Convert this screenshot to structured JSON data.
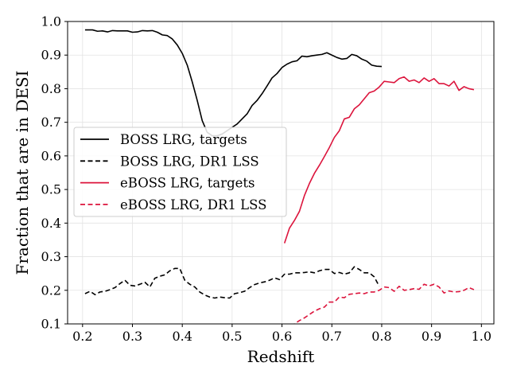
{
  "chart_data": {
    "type": "line",
    "xlabel": "Redshift",
    "ylabel": "Fraction that are in DESI",
    "xlim": [
      0.17,
      1.025
    ],
    "ylim": [
      0.1,
      1.0
    ],
    "xticks": [
      "0.2",
      "0.3",
      "0.4",
      "0.5",
      "0.6",
      "0.7",
      "0.8",
      "0.9",
      "1.0"
    ],
    "yticks": [
      "0.1",
      "0.2",
      "0.3",
      "0.4",
      "0.5",
      "0.6",
      "0.7",
      "0.8",
      "0.9",
      "1.0"
    ],
    "grid": true,
    "legend_position": "center-left",
    "series": [
      {
        "name": "BOSS LRG, targets",
        "color": "#000000",
        "dash": "solid",
        "x": [
          0.205,
          0.22,
          0.23,
          0.24,
          0.25,
          0.26,
          0.27,
          0.28,
          0.29,
          0.3,
          0.31,
          0.32,
          0.33,
          0.34,
          0.35,
          0.36,
          0.37,
          0.38,
          0.39,
          0.4,
          0.41,
          0.42,
          0.43,
          0.44,
          0.45,
          0.46,
          0.47,
          0.48,
          0.49,
          0.5,
          0.51,
          0.52,
          0.53,
          0.54,
          0.55,
          0.56,
          0.57,
          0.58,
          0.59,
          0.6,
          0.61,
          0.62,
          0.63,
          0.64,
          0.65,
          0.66,
          0.67,
          0.68,
          0.69,
          0.7,
          0.71,
          0.72,
          0.73,
          0.74,
          0.75,
          0.76,
          0.77,
          0.78,
          0.79,
          0.8
        ],
        "y": [
          0.975,
          0.975,
          0.971,
          0.972,
          0.969,
          0.973,
          0.972,
          0.972,
          0.972,
          0.968,
          0.969,
          0.973,
          0.972,
          0.973,
          0.968,
          0.96,
          0.958,
          0.948,
          0.93,
          0.905,
          0.87,
          0.82,
          0.765,
          0.705,
          0.67,
          0.66,
          0.66,
          0.665,
          0.675,
          0.685,
          0.695,
          0.71,
          0.725,
          0.75,
          0.765,
          0.785,
          0.808,
          0.832,
          0.845,
          0.863,
          0.873,
          0.88,
          0.883,
          0.897,
          0.895,
          0.898,
          0.9,
          0.902,
          0.907,
          0.9,
          0.893,
          0.888,
          0.89,
          0.902,
          0.898,
          0.888,
          0.882,
          0.87,
          0.867,
          0.866
        ]
      },
      {
        "name": "BOSS LRG, DR1 LSS",
        "color": "#000000",
        "dash": "dashed",
        "x": [
          0.205,
          0.215,
          0.225,
          0.235,
          0.245,
          0.255,
          0.265,
          0.275,
          0.285,
          0.295,
          0.305,
          0.315,
          0.325,
          0.335,
          0.345,
          0.355,
          0.365,
          0.375,
          0.385,
          0.395,
          0.405,
          0.415,
          0.425,
          0.435,
          0.445,
          0.455,
          0.465,
          0.475,
          0.485,
          0.495,
          0.505,
          0.515,
          0.525,
          0.535,
          0.545,
          0.555,
          0.565,
          0.575,
          0.585,
          0.595,
          0.605,
          0.615,
          0.625,
          0.635,
          0.645,
          0.655,
          0.665,
          0.675,
          0.685,
          0.695,
          0.705,
          0.715,
          0.725,
          0.735,
          0.745,
          0.755,
          0.765,
          0.775,
          0.785,
          0.795
        ],
        "y": [
          0.19,
          0.197,
          0.187,
          0.195,
          0.197,
          0.202,
          0.208,
          0.22,
          0.23,
          0.215,
          0.213,
          0.218,
          0.224,
          0.21,
          0.236,
          0.242,
          0.246,
          0.258,
          0.265,
          0.265,
          0.23,
          0.218,
          0.21,
          0.195,
          0.186,
          0.18,
          0.177,
          0.18,
          0.178,
          0.177,
          0.19,
          0.193,
          0.197,
          0.208,
          0.217,
          0.222,
          0.225,
          0.23,
          0.237,
          0.232,
          0.248,
          0.248,
          0.252,
          0.252,
          0.253,
          0.255,
          0.252,
          0.258,
          0.262,
          0.262,
          0.25,
          0.253,
          0.248,
          0.252,
          0.27,
          0.262,
          0.252,
          0.252,
          0.24,
          0.212
        ]
      },
      {
        "name": "eBOSS LRG, targets",
        "color": "#dc143c",
        "dash": "solid",
        "x": [
          0.605,
          0.615,
          0.625,
          0.635,
          0.645,
          0.655,
          0.665,
          0.675,
          0.685,
          0.695,
          0.705,
          0.715,
          0.725,
          0.735,
          0.745,
          0.755,
          0.765,
          0.775,
          0.785,
          0.795,
          0.805,
          0.815,
          0.825,
          0.835,
          0.845,
          0.855,
          0.865,
          0.875,
          0.885,
          0.895,
          0.905,
          0.915,
          0.925,
          0.935,
          0.945,
          0.955,
          0.965,
          0.975,
          0.985
        ],
        "y": [
          0.34,
          0.385,
          0.408,
          0.435,
          0.482,
          0.518,
          0.548,
          0.572,
          0.598,
          0.625,
          0.655,
          0.675,
          0.71,
          0.715,
          0.74,
          0.752,
          0.77,
          0.788,
          0.793,
          0.805,
          0.822,
          0.82,
          0.818,
          0.83,
          0.835,
          0.822,
          0.826,
          0.818,
          0.832,
          0.822,
          0.83,
          0.815,
          0.815,
          0.808,
          0.822,
          0.795,
          0.806,
          0.8,
          0.797
        ]
      },
      {
        "name": "eBOSS LRG, DR1 LSS",
        "color": "#dc143c",
        "dash": "dashed",
        "x": [
          0.605,
          0.615,
          0.625,
          0.635,
          0.645,
          0.655,
          0.665,
          0.675,
          0.685,
          0.695,
          0.705,
          0.715,
          0.725,
          0.735,
          0.745,
          0.755,
          0.765,
          0.775,
          0.785,
          0.795,
          0.805,
          0.815,
          0.825,
          0.835,
          0.845,
          0.855,
          0.865,
          0.875,
          0.885,
          0.895,
          0.905,
          0.915,
          0.925,
          0.935,
          0.945,
          0.955,
          0.965,
          0.975,
          0.985
        ],
        "y": [
          0.08,
          0.09,
          0.1,
          0.11,
          0.118,
          0.128,
          0.138,
          0.145,
          0.15,
          0.165,
          0.165,
          0.18,
          0.178,
          0.188,
          0.19,
          0.192,
          0.19,
          0.195,
          0.195,
          0.2,
          0.21,
          0.208,
          0.197,
          0.212,
          0.2,
          0.202,
          0.205,
          0.203,
          0.218,
          0.213,
          0.218,
          0.21,
          0.192,
          0.198,
          0.195,
          0.196,
          0.2,
          0.208,
          0.202
        ]
      }
    ]
  }
}
